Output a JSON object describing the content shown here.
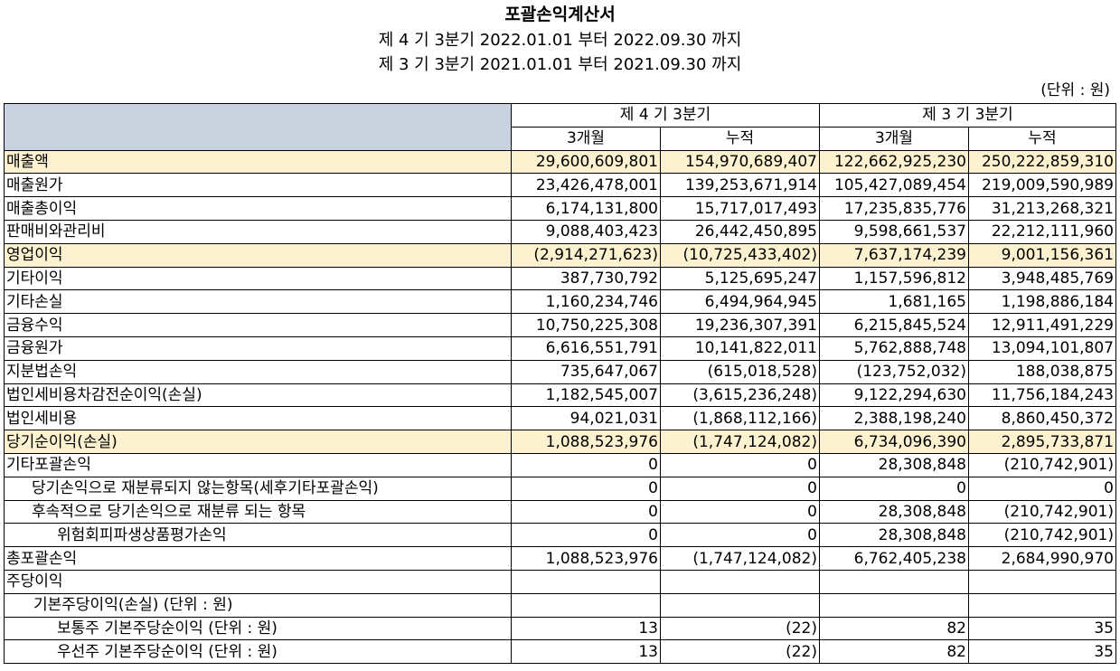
{
  "title": "포괄손익계산서",
  "period_current": "제 4 기 3분기 2022.01.01 부터 2022.09.30 까지",
  "period_prior": "제 3 기 3분기 2021.01.01 부터 2021.09.30 까지",
  "unit": "(단위 : 원)",
  "header": {
    "group_current": "제 4 기 3분기",
    "group_prior": "제 3 기 3분기",
    "col_3m_current": "3개월",
    "col_cum_current": "누적",
    "col_3m_prior": "3개월",
    "col_cum_prior": "누적"
  },
  "highlight_color": "#fdf2cf",
  "rows": [
    {
      "label": "매출액",
      "v": [
        "29,600,609,801",
        "154,970,689,407",
        "122,662,925,230",
        "250,222,859,310"
      ],
      "highlight": true
    },
    {
      "label": "매출원가",
      "v": [
        "23,426,478,001",
        "139,253,671,914",
        "105,427,089,454",
        "219,009,590,989"
      ]
    },
    {
      "label": "매출총이익",
      "v": [
        "6,174,131,800",
        "15,717,017,493",
        "17,235,835,776",
        "31,213,268,321"
      ]
    },
    {
      "label": "판매비와관리비",
      "v": [
        "9,088,403,423",
        "26,442,450,895",
        "9,598,661,537",
        "22,212,111,960"
      ]
    },
    {
      "label": "영업이익",
      "v": [
        "(2,914,271,623)",
        "(10,725,433,402)",
        "7,637,174,239",
        "9,001,156,361"
      ],
      "highlight": true
    },
    {
      "label": "기타이익",
      "v": [
        "387,730,792",
        "5,125,695,247",
        "1,157,596,812",
        "3,948,485,769"
      ]
    },
    {
      "label": "기타손실",
      "v": [
        "1,160,234,746",
        "6,494,964,945",
        "1,681,165",
        "1,198,886,184"
      ]
    },
    {
      "label": "금융수익",
      "v": [
        "10,750,225,308",
        "19,236,307,391",
        "6,215,845,524",
        "12,911,491,229"
      ]
    },
    {
      "label": "금융원가",
      "v": [
        "6,616,551,791",
        "10,141,822,011",
        "5,762,888,748",
        "13,094,101,807"
      ]
    },
    {
      "label": "지분법손익",
      "v": [
        "735,647,067",
        "(615,018,528)",
        "(123,752,032)",
        "188,038,875"
      ]
    },
    {
      "label": "법인세비용차감전순이익(손실)",
      "v": [
        "1,182,545,007",
        "(3,615,236,248)",
        "9,122,294,630",
        "11,756,184,243"
      ]
    },
    {
      "label": "법인세비용",
      "v": [
        "94,021,031",
        "(1,868,112,166)",
        "2,388,198,240",
        "8,860,450,372"
      ]
    },
    {
      "label": "당기순이익(손실)",
      "v": [
        "1,088,523,976",
        "(1,747,124,082)",
        "6,734,096,390",
        "2,895,733,871"
      ],
      "highlight": true
    },
    {
      "label": "기타포괄손익",
      "v": [
        "0",
        "0",
        "28,308,848",
        "(210,742,901)"
      ]
    },
    {
      "label": "당기손익으로 재분류되지 않는항목(세후기타포괄손익)",
      "v": [
        "0",
        "0",
        "0",
        "0"
      ]
    },
    {
      "label": "후속적으로 당기손익으로 재분류 되는 항목",
      "v": [
        "0",
        "0",
        "28,308,848",
        "(210,742,901)"
      ]
    },
    {
      "label": "위험회피파생상품평가손익",
      "v": [
        "0",
        "0",
        "28,308,848",
        "(210,742,901)"
      ]
    },
    {
      "label": "총포괄손익",
      "v": [
        "1,088,523,976",
        "(1,747,124,082)",
        "6,762,405,238",
        "2,684,990,970"
      ]
    },
    {
      "label": "주당이익",
      "v": [
        "",
        "",
        "",
        ""
      ]
    },
    {
      "label": "기본주당이익(손실) (단위 : 원)",
      "v": [
        "",
        "",
        "",
        ""
      ]
    },
    {
      "label": "보통주 기본주당순이익 (단위 : 원)",
      "v": [
        "13",
        "(22)",
        "82",
        "35"
      ]
    },
    {
      "label": "우선주 기본주당순이익 (단위 : 원)",
      "v": [
        "13",
        "(22)",
        "82",
        "35"
      ]
    }
  ]
}
